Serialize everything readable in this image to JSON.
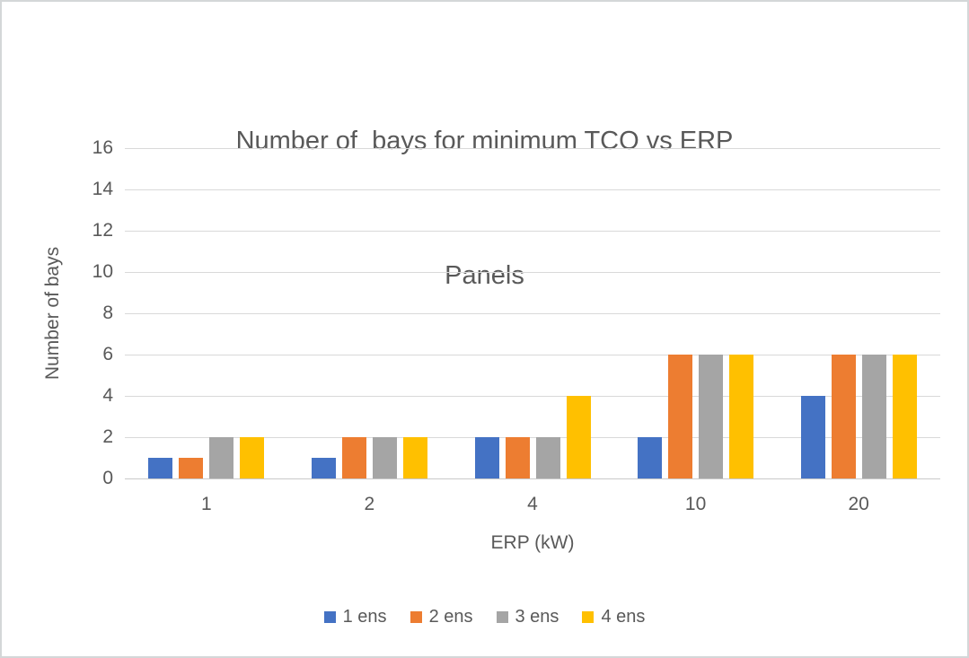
{
  "window": {
    "background": "#ffffff",
    "border_color": "#d4d7d8"
  },
  "chart_data": {
    "type": "bar",
    "title": "Number of  bays for minimum TCO vs ERP Panels",
    "title_lines": [
      "Number of  bays for minimum TCO vs ERP",
      "Panels"
    ],
    "xlabel": "ERP (kW)",
    "ylabel": "Number of bays",
    "categories": [
      "1",
      "2",
      "4",
      "10",
      "20"
    ],
    "series": [
      {
        "name": "1 ens",
        "color": "#4472C4",
        "values": [
          1,
          1,
          2,
          2,
          4
        ]
      },
      {
        "name": "2 ens",
        "color": "#ED7D31",
        "values": [
          1,
          2,
          2,
          6,
          6
        ]
      },
      {
        "name": "3 ens",
        "color": "#A5A5A5",
        "values": [
          2,
          2,
          2,
          6,
          6
        ]
      },
      {
        "name": "4 ens",
        "color": "#FFC000",
        "values": [
          2,
          2,
          4,
          6,
          6
        ]
      }
    ],
    "ylim": [
      0,
      16
    ],
    "yticks": [
      0,
      2,
      4,
      6,
      8,
      10,
      12,
      14,
      16
    ],
    "grid": true,
    "legend_position": "bottom",
    "text_color": "#595959",
    "gridline_color": "#D9D9D9"
  }
}
